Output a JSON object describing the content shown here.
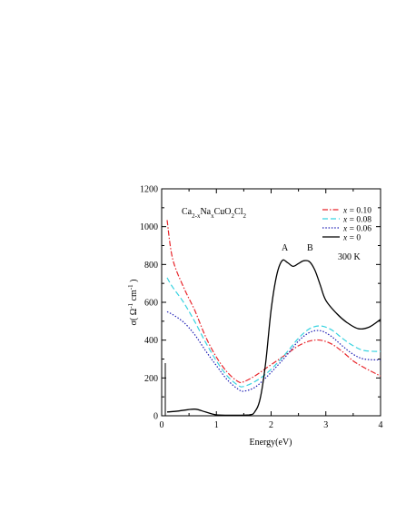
{
  "chart_data": {
    "type": "line",
    "xlabel": "Energy(eV)",
    "ylabel": "σ( Ω^-1 cm^-1 )",
    "xlim": [
      0,
      4
    ],
    "ylim": [
      0,
      1200
    ],
    "xticks": [
      "0",
      "1",
      "2",
      "3",
      "4"
    ],
    "yticks": [
      "0",
      "200",
      "400",
      "600",
      "800",
      "1000",
      "1200"
    ],
    "grid": false,
    "legend_position": "top-right",
    "compound_label": "Ca2-xNaxCuO2Cl2",
    "annotations": {
      "peak_a": "A",
      "peak_b": "B",
      "temperature": "300 K"
    },
    "series": [
      {
        "name": "x = 0.10",
        "color": "#e8242a",
        "style": "dashdot",
        "x": [
          0.1,
          0.2,
          0.4,
          0.6,
          0.8,
          1.0,
          1.2,
          1.4,
          1.5,
          1.7,
          1.9,
          2.1,
          2.3,
          2.5,
          2.7,
          2.9,
          3.1,
          3.3,
          3.5,
          3.7,
          4.0
        ],
        "y": [
          1035,
          830,
          680,
          560,
          420,
          310,
          230,
          180,
          180,
          210,
          250,
          290,
          330,
          370,
          395,
          400,
          380,
          340,
          290,
          255,
          210
        ]
      },
      {
        "name": "x = 0.08",
        "color": "#38d3e0",
        "style": "dashed",
        "x": [
          0.1,
          0.2,
          0.4,
          0.6,
          0.8,
          1.0,
          1.2,
          1.4,
          1.5,
          1.7,
          1.9,
          2.1,
          2.3,
          2.5,
          2.7,
          2.9,
          3.1,
          3.3,
          3.5,
          3.7,
          4.0
        ],
        "y": [
          730,
          680,
          600,
          500,
          390,
          290,
          210,
          160,
          155,
          180,
          220,
          275,
          340,
          410,
          460,
          475,
          455,
          410,
          370,
          345,
          340
        ]
      },
      {
        "name": "x = 0.06",
        "color": "#1f1fb5",
        "style": "dotted",
        "x": [
          0.1,
          0.2,
          0.4,
          0.6,
          0.8,
          1.0,
          1.2,
          1.4,
          1.5,
          1.7,
          1.9,
          2.1,
          2.3,
          2.5,
          2.7,
          2.9,
          3.1,
          3.3,
          3.5,
          3.7,
          4.0
        ],
        "y": [
          550,
          535,
          495,
          430,
          345,
          265,
          190,
          140,
          130,
          150,
          200,
          260,
          325,
          395,
          440,
          450,
          420,
          370,
          325,
          300,
          295
        ]
      },
      {
        "name": "x = 0",
        "color": "#000000",
        "style": "solid",
        "x": [
          0.1,
          0.3,
          0.6,
          0.8,
          1.0,
          1.3,
          1.6,
          1.7,
          1.8,
          1.9,
          2.0,
          2.1,
          2.2,
          2.3,
          2.4,
          2.5,
          2.6,
          2.7,
          2.8,
          2.9,
          3.0,
          3.2,
          3.4,
          3.6,
          3.8,
          4.0
        ],
        "y": [
          20,
          25,
          35,
          20,
          5,
          3,
          5,
          20,
          90,
          280,
          560,
          740,
          820,
          810,
          790,
          805,
          820,
          815,
          770,
          690,
          610,
          540,
          490,
          460,
          470,
          510
        ]
      }
    ]
  }
}
